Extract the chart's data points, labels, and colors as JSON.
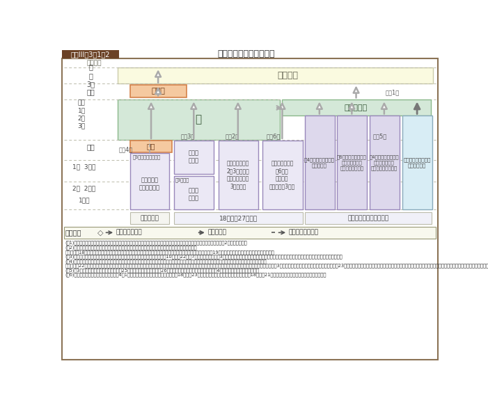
{
  "title_box_text": "図表III-3-1-2",
  "title_main": "自衛官の任用制度の概要",
  "bg_color": "#ffffff",
  "colors": {
    "bg_color": "#ffffff",
    "kanbu_bg": "#FAFAE0",
    "kanbu_border": "#CCCCAA",
    "so_bg": "#D4E8D8",
    "so_border": "#8AB88A",
    "kanbu_hoho_bg": "#D4E8D8",
    "kanbu_hoho_border": "#8AB88A",
    "junso_box_bg": "#F5C9A0",
    "junso_box_border": "#D4824A",
    "shichou_box_bg": "#F5C9A0",
    "shichou_box_border": "#D4824A",
    "purple_box_bg": "#DDD8EC",
    "purple_box_border": "#9988BB",
    "blue_box_bg": "#D8EDF5",
    "blue_box_border": "#88AABB",
    "dashed_line": "#AAAAAA",
    "title_box_bg": "#6B4226",
    "outer_border": "#8B7355"
  },
  "notes_bottom": [
    "(注1)　医科・歯科・薬剤幹部候補生については、医師・歯科医師・薬剤師国家試験に合格し、所定の教育課程を修了すれば、2尉に昇任する。",
    "(注2)　一般曹候補生については、最初から定年制の「曹」に昇任する前提で採用された「士」のこと。平成18年度まで「一般曹候補生」及び「曹候補士」の二つの制度を設けていたが、固別制度を一本化し、平成19年度から一般曹候補生として採用している。",
    "(注3)　自衛官候補生については、任期制自衛官の初期教育を充実させるため、10（平成22）年7月から、入隊当初の3か月間を非自衛官宿泊して、定員外の防衛省員とし、基礎的教育訓練に専従させることとした。",
    "(注4)　陸上自衛隊高等工科学校については、将来陸上自衛隊において装備品を整備・運用するとともに、国際社会にも対応できる自衛官となる者を養成する。平成22年度の採用から、自衛官の身分ではなく、定員外の新たな身分である「生徒」に変更した。新たな生徒については、通信教育などにより生徒課程終了後（3年間）は、高等学校卒業資格を取得する。平成23年度の採用から、従来の一般採用に加えて、中学校校長などの推薦を受けた者の中から、陸上自衛隊高等学校生徒生として相応しい者を選抜する推薦制度を導入した。",
    "(注5)　3年制の看護学科については、平成25年度をもって廃了し、平成26年度より、防衛医科大学校医学教育部に4年制の看護学科が新設された。",
    "(注6)　航空学生については、採用年度の4月1日において、海上自衛隊にあっては年齢18歳以上23歳未満の者、航空自衛隊にあっては年齢は18歳以上21歳未満の者を航空学生として採用している。"
  ]
}
